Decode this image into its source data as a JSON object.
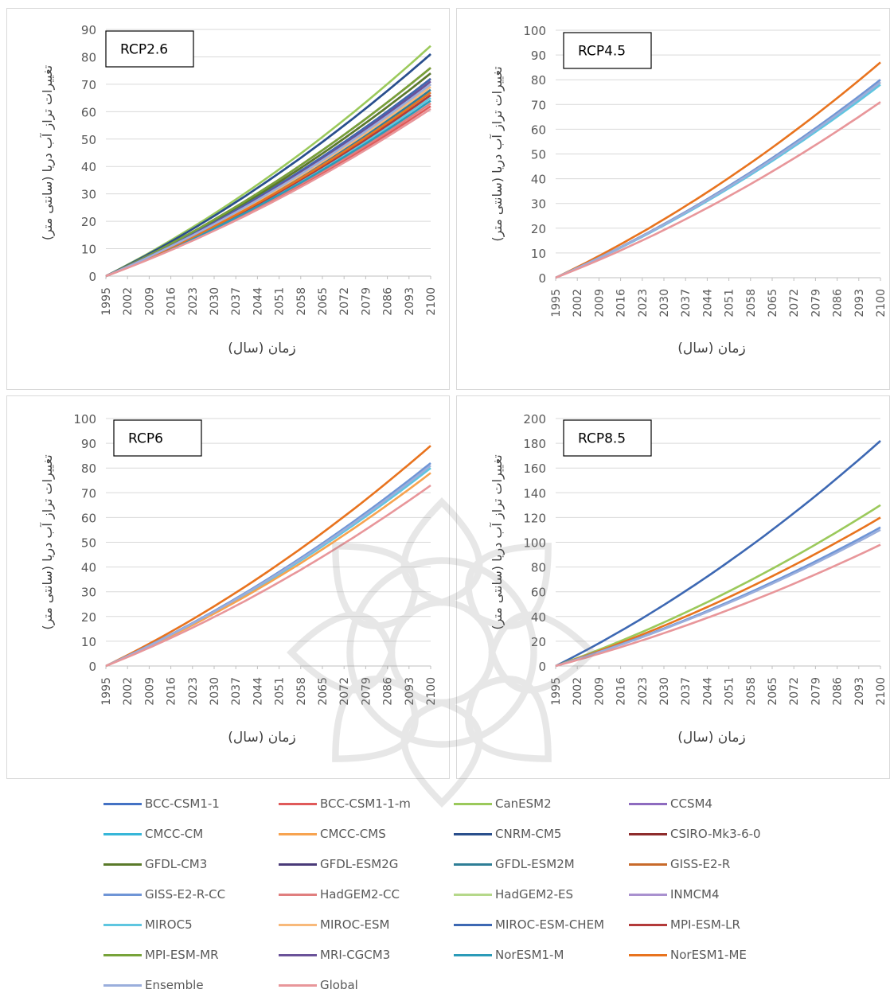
{
  "chart_data": [
    {
      "type": "line",
      "title": "RCP2.6",
      "xlabel": "زمان (سال)",
      "ylabel": "تغییرات تراز آب دریا (سانتی متر)",
      "ylim": [
        0,
        90
      ],
      "yticks": [
        0,
        10,
        20,
        30,
        40,
        50,
        60,
        70,
        80,
        90
      ],
      "x_ticks": [
        "1995",
        "2002",
        "2009",
        "2016",
        "2023",
        "2030",
        "2037",
        "2044",
        "2051",
        "2058",
        "2065",
        "2072",
        "2079",
        "2086",
        "2093",
        "2100"
      ],
      "xrange": [
        1995,
        2100
      ],
      "legend_position": "bottom",
      "series": [
        {
          "name": "BCC-CSM1-1",
          "values": [
            0,
            81
          ]
        },
        {
          "name": "BCC-CSM1-1-m",
          "values": [
            0,
            62
          ]
        },
        {
          "name": "CanESM2",
          "values": [
            0,
            84
          ]
        },
        {
          "name": "CCSM4",
          "values": [
            0,
            74
          ]
        },
        {
          "name": "CMCC-CM",
          "values": [
            0,
            66
          ]
        },
        {
          "name": "CMCC-CMS",
          "values": [
            0,
            70
          ]
        },
        {
          "name": "CNRM-CM5",
          "values": [
            0,
            81
          ]
        },
        {
          "name": "CSIRO-Mk3-6-0",
          "values": [
            0,
            76
          ]
        },
        {
          "name": "GFDL-CM3",
          "values": [
            0,
            74
          ]
        },
        {
          "name": "GFDL-ESM2G",
          "values": [
            0,
            72
          ]
        },
        {
          "name": "GFDL-ESM2M",
          "values": [
            0,
            68
          ]
        },
        {
          "name": "GISS-E2-R",
          "values": [
            0,
            72
          ]
        },
        {
          "name": "GISS-E2-R-CC",
          "values": [
            0,
            67
          ]
        },
        {
          "name": "HadGEM2-CC",
          "values": [
            0,
            63
          ]
        },
        {
          "name": "HadGEM2-ES",
          "values": [
            0,
            70
          ]
        },
        {
          "name": "INMCM4",
          "values": [
            0,
            70
          ]
        },
        {
          "name": "MIROC5",
          "values": [
            0,
            65
          ]
        },
        {
          "name": "MIROC-ESM",
          "values": [
            0,
            69
          ]
        },
        {
          "name": "MIROC-ESM-CHEM",
          "values": [
            0,
            72
          ]
        },
        {
          "name": "MPI-ESM-LR",
          "values": [
            0,
            66
          ]
        },
        {
          "name": "MPI-ESM-MR",
          "values": [
            0,
            76
          ]
        },
        {
          "name": "MRI-CGCM3",
          "values": [
            0,
            71
          ]
        },
        {
          "name": "NorESM1-M",
          "values": [
            0,
            64
          ]
        },
        {
          "name": "NorESM1-ME",
          "values": [
            0,
            67
          ]
        },
        {
          "name": "Ensemble",
          "values": [
            0,
            70
          ]
        },
        {
          "name": "Global",
          "values": [
            0,
            61
          ]
        }
      ]
    },
    {
      "type": "line",
      "title": "RCP4.5",
      "xlabel": "زمان (سال)",
      "ylabel": "تغییرات تراز آب دریا (سانتی متر)",
      "ylim": [
        0,
        100
      ],
      "yticks": [
        0,
        10,
        20,
        30,
        40,
        50,
        60,
        70,
        80,
        90,
        100
      ],
      "x_ticks": [
        "1995",
        "2002",
        "2009",
        "2016",
        "2023",
        "2030",
        "2037",
        "2044",
        "2051",
        "2058",
        "2065",
        "2072",
        "2079",
        "2086",
        "2093",
        "2100"
      ],
      "xrange": [
        1995,
        2100
      ],
      "legend_position": "bottom",
      "series": [
        {
          "name": "NorESM1-ME",
          "values": [
            0,
            87
          ]
        },
        {
          "name": "GISS-E2-R-CC",
          "values": [
            0,
            80
          ]
        },
        {
          "name": "CMCC-CMS",
          "values": [
            0,
            79
          ]
        },
        {
          "name": "MIROC5",
          "values": [
            0,
            78
          ]
        },
        {
          "name": "Ensemble",
          "values": [
            0,
            79
          ]
        },
        {
          "name": "Global",
          "values": [
            0,
            71
          ]
        }
      ]
    },
    {
      "type": "line",
      "title": "RCP6",
      "xlabel": "زمان (سال)",
      "ylabel": "تغییرات تراز آب دریا (سانتی متر)",
      "ylim": [
        0,
        100
      ],
      "yticks": [
        0,
        10,
        20,
        30,
        40,
        50,
        60,
        70,
        80,
        90,
        100
      ],
      "x_ticks": [
        "1995",
        "2002",
        "2009",
        "2016",
        "2023",
        "2030",
        "2037",
        "2044",
        "2051",
        "2058",
        "2065",
        "2072",
        "2079",
        "2086",
        "2093",
        "2100"
      ],
      "xrange": [
        1995,
        2100
      ],
      "legend_position": "bottom",
      "series": [
        {
          "name": "NorESM1-ME",
          "values": [
            0,
            89
          ]
        },
        {
          "name": "GISS-E2-R-CC",
          "values": [
            0,
            82
          ]
        },
        {
          "name": "MIROC5",
          "values": [
            0,
            80
          ]
        },
        {
          "name": "CMCC-CMS",
          "values": [
            0,
            78
          ]
        },
        {
          "name": "Ensemble",
          "values": [
            0,
            81
          ]
        },
        {
          "name": "Global",
          "values": [
            0,
            73
          ]
        }
      ]
    },
    {
      "type": "line",
      "title": "RCP8.5",
      "xlabel": "زمان (سال)",
      "ylabel": "تغییرات تراز آب دریا (سانتی متر)",
      "ylim": [
        0,
        200
      ],
      "yticks": [
        0,
        20,
        40,
        60,
        80,
        100,
        120,
        140,
        160,
        180,
        200
      ],
      "x_ticks": [
        "1995",
        "2002",
        "2009",
        "2016",
        "2023",
        "2030",
        "2037",
        "2044",
        "2051",
        "2058",
        "2065",
        "2072",
        "2079",
        "2086",
        "2093",
        "2100"
      ],
      "xrange": [
        1995,
        2100
      ],
      "legend_position": "bottom",
      "series": [
        {
          "name": "MIROC-ESM-CHEM",
          "values": [
            0,
            182
          ]
        },
        {
          "name": "CanESM2",
          "values": [
            0,
            130
          ]
        },
        {
          "name": "NorESM1-ME",
          "values": [
            0,
            120
          ]
        },
        {
          "name": "GISS-E2-R-CC",
          "values": [
            0,
            112
          ]
        },
        {
          "name": "Ensemble",
          "values": [
            0,
            110
          ]
        },
        {
          "name": "Global",
          "values": [
            0,
            98
          ]
        }
      ]
    }
  ],
  "legend": [
    {
      "name": "BCC-CSM1-1",
      "color": "#4472c4"
    },
    {
      "name": "BCC-CSM1-1-m",
      "color": "#e05a5a"
    },
    {
      "name": "CanESM2",
      "color": "#9bc95b"
    },
    {
      "name": "CCSM4",
      "color": "#8e6bbf"
    },
    {
      "name": "CMCC-CM",
      "color": "#37b6d8"
    },
    {
      "name": "CMCC-CMS",
      "color": "#f7a350"
    },
    {
      "name": "CNRM-CM5",
      "color": "#2a4f8c"
    },
    {
      "name": "CSIRO-Mk3-6-0",
      "color": "#8e2c2c"
    },
    {
      "name": "GFDL-CM3",
      "color": "#5a7a2a"
    },
    {
      "name": "GFDL-ESM2G",
      "color": "#4a3a78"
    },
    {
      "name": "GFDL-ESM2M",
      "color": "#2e7e96"
    },
    {
      "name": "GISS-E2-R",
      "color": "#c86a2a"
    },
    {
      "name": "GISS-E2-R-CC",
      "color": "#6f95d6"
    },
    {
      "name": "HadGEM2-CC",
      "color": "#e07e7e"
    },
    {
      "name": "HadGEM2-ES",
      "color": "#b5d88a"
    },
    {
      "name": "INMCM4",
      "color": "#a991cf"
    },
    {
      "name": "MIROC5",
      "color": "#5ec6e0"
    },
    {
      "name": "MIROC-ESM",
      "color": "#f8b97a"
    },
    {
      "name": "MIROC-ESM-CHEM",
      "color": "#3d68b3"
    },
    {
      "name": "MPI-ESM-LR",
      "color": "#b33a3a"
    },
    {
      "name": "MPI-ESM-MR",
      "color": "#77a33a"
    },
    {
      "name": "MRI-CGCM3",
      "color": "#6a5299"
    },
    {
      "name": "NorESM1-M",
      "color": "#2b9bb8"
    },
    {
      "name": "NorESM1-ME",
      "color": "#e8731e"
    },
    {
      "name": "Ensemble",
      "color": "#9aaedc"
    },
    {
      "name": "Global",
      "color": "#e8969a"
    }
  ]
}
